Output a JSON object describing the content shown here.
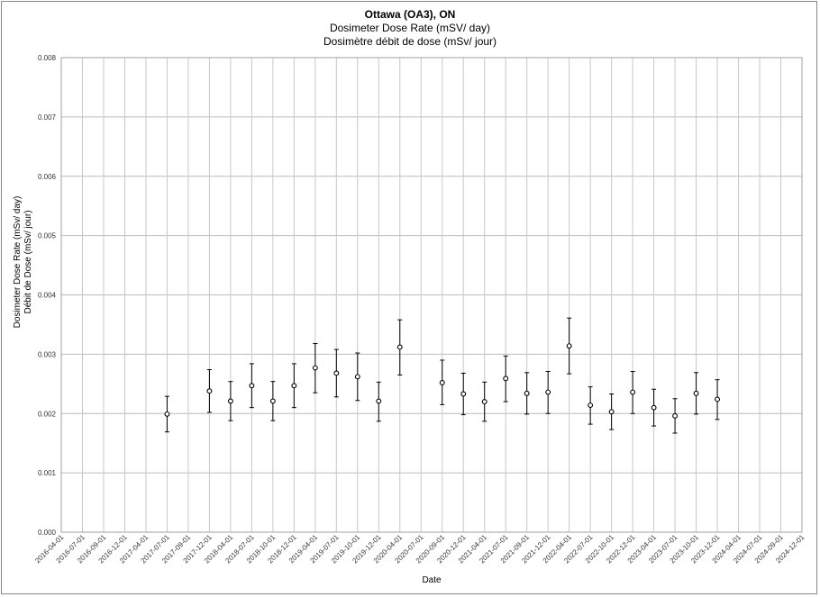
{
  "chart_data": {
    "type": "scatter",
    "title": "Ottawa (OA3), ON",
    "subtitle_en": "Dosimeter Dose Rate (mSV/ day)",
    "subtitle_fr": "Dosimètre débit de dose (mSv/ jour)",
    "xlabel": "Date",
    "ylabel_en": "Dosimeter Dose Rate (mSv/ day)",
    "ylabel_fr": "Débit de Dose (mSv/ jour)",
    "ylim": [
      0,
      0.008
    ],
    "y_ticks": [
      "0.000",
      "0.001",
      "0.002",
      "0.003",
      "0.004",
      "0.005",
      "0.006",
      "0.007",
      "0.008"
    ],
    "x_ticks": [
      "2016-04-01",
      "2016-07-01",
      "2016-09-01",
      "2016-12-01",
      "2017-04-01",
      "2017-07-01",
      "2017-09-01",
      "2017-12-01",
      "2018-04-01",
      "2018-07-01",
      "2018-10-01",
      "2018-12-01",
      "2019-04-01",
      "2019-07-01",
      "2019-10-01",
      "2019-12-01",
      "2020-04-01",
      "2020-07-01",
      "2020-09-01",
      "2020-12-01",
      "2021-04-01",
      "2021-07-01",
      "2021-09-01",
      "2021-12-01",
      "2022-04-01",
      "2022-07-01",
      "2022-10-01",
      "2022-12-01",
      "2023-04-01",
      "2023-07-01",
      "2023-10-01",
      "2023-12-01",
      "2024-04-01",
      "2024-07-01",
      "2024-09-01",
      "2024-12-01"
    ],
    "grid": true,
    "legend": "none",
    "series": [
      {
        "points": [
          {
            "x": "2017-07-01",
            "y": 0.00199,
            "lo": 0.00169,
            "hi": 0.00229
          },
          {
            "x": "2017-12-01",
            "y": 0.00238,
            "lo": 0.00202,
            "hi": 0.00274
          },
          {
            "x": "2018-04-01",
            "y": 0.00221,
            "lo": 0.00188,
            "hi": 0.00254
          },
          {
            "x": "2018-07-01",
            "y": 0.00247,
            "lo": 0.0021,
            "hi": 0.00284
          },
          {
            "x": "2018-10-01",
            "y": 0.00221,
            "lo": 0.00188,
            "hi": 0.00254
          },
          {
            "x": "2018-12-01",
            "y": 0.00247,
            "lo": 0.0021,
            "hi": 0.00284
          },
          {
            "x": "2019-04-01",
            "y": 0.00277,
            "lo": 0.00235,
            "hi": 0.00318
          },
          {
            "x": "2019-07-01",
            "y": 0.00268,
            "lo": 0.00228,
            "hi": 0.00308
          },
          {
            "x": "2019-10-01",
            "y": 0.00262,
            "lo": 0.00222,
            "hi": 0.00302
          },
          {
            "x": "2019-12-01",
            "y": 0.00221,
            "lo": 0.00187,
            "hi": 0.00253
          },
          {
            "x": "2020-04-01",
            "y": 0.00312,
            "lo": 0.00265,
            "hi": 0.00358
          },
          {
            "x": "2020-09-01",
            "y": 0.00252,
            "lo": 0.00215,
            "hi": 0.0029
          },
          {
            "x": "2020-12-01",
            "y": 0.00233,
            "lo": 0.00198,
            "hi": 0.00268
          },
          {
            "x": "2021-04-01",
            "y": 0.0022,
            "lo": 0.00187,
            "hi": 0.00253
          },
          {
            "x": "2021-07-01",
            "y": 0.00259,
            "lo": 0.0022,
            "hi": 0.00297
          },
          {
            "x": "2021-09-01",
            "y": 0.00234,
            "lo": 0.00199,
            "hi": 0.00269
          },
          {
            "x": "2021-12-01",
            "y": 0.00236,
            "lo": 0.002,
            "hi": 0.00271
          },
          {
            "x": "2022-04-01",
            "y": 0.00314,
            "lo": 0.00267,
            "hi": 0.00361
          },
          {
            "x": "2022-07-01",
            "y": 0.00214,
            "lo": 0.00182,
            "hi": 0.00245
          },
          {
            "x": "2022-10-01",
            "y": 0.00203,
            "lo": 0.00173,
            "hi": 0.00233
          },
          {
            "x": "2022-12-01",
            "y": 0.00236,
            "lo": 0.002,
            "hi": 0.00271
          },
          {
            "x": "2023-04-01",
            "y": 0.0021,
            "lo": 0.00179,
            "hi": 0.00241
          },
          {
            "x": "2023-07-01",
            "y": 0.00196,
            "lo": 0.00167,
            "hi": 0.00225
          },
          {
            "x": "2023-10-01",
            "y": 0.00234,
            "lo": 0.00199,
            "hi": 0.00269
          },
          {
            "x": "2023-12-01",
            "y": 0.00224,
            "lo": 0.0019,
            "hi": 0.00257
          }
        ]
      }
    ]
  }
}
